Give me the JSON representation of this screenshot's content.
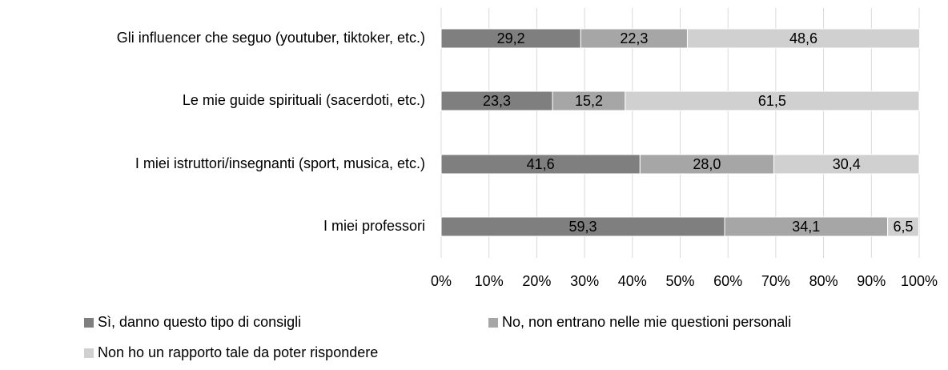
{
  "chart_data": {
    "type": "stacked-barh",
    "categories": [
      "Gli influencer che seguo (youtuber, tiktoker, etc.)",
      "Le mie guide spirituali (sacerdoti, etc.)",
      "I miei istruttori/insegnanti (sport, musica, etc.)",
      "I miei professori"
    ],
    "series": [
      {
        "name": "Sì, danno questo tipo di consigli",
        "color": "#7f7f7f",
        "values": [
          29.2,
          23.3,
          41.6,
          59.3
        ],
        "value_labels": [
          "29,2",
          "23,3",
          "41,6",
          "59,3"
        ]
      },
      {
        "name": "No, non entrano nelle mie questioni personali",
        "color": "#a6a6a6",
        "values": [
          22.3,
          15.2,
          28.0,
          34.1
        ],
        "value_labels": [
          "22,3",
          "15,2",
          "28,0",
          "34,1"
        ]
      },
      {
        "name": "Non ho un rapporto tale da poter rispondere",
        "color": "#d0d0d0",
        "values": [
          48.6,
          61.5,
          30.4,
          6.5
        ],
        "value_labels": [
          "48,6",
          "61,5",
          "30,4",
          "6,5"
        ]
      }
    ],
    "xlim": [
      0,
      100
    ],
    "xticks": [
      {
        "value": 0,
        "label": "0%"
      },
      {
        "value": 10,
        "label": "10%"
      },
      {
        "value": 20,
        "label": "20%"
      },
      {
        "value": 30,
        "label": "30%"
      },
      {
        "value": 40,
        "label": "40%"
      },
      {
        "value": 50,
        "label": "50%"
      },
      {
        "value": 60,
        "label": "60%"
      },
      {
        "value": 70,
        "label": "70%"
      },
      {
        "value": 80,
        "label": "80%"
      },
      {
        "value": 90,
        "label": "90%"
      },
      {
        "value": 100,
        "label": "100%"
      }
    ],
    "grid": true,
    "legend": "bottom"
  }
}
